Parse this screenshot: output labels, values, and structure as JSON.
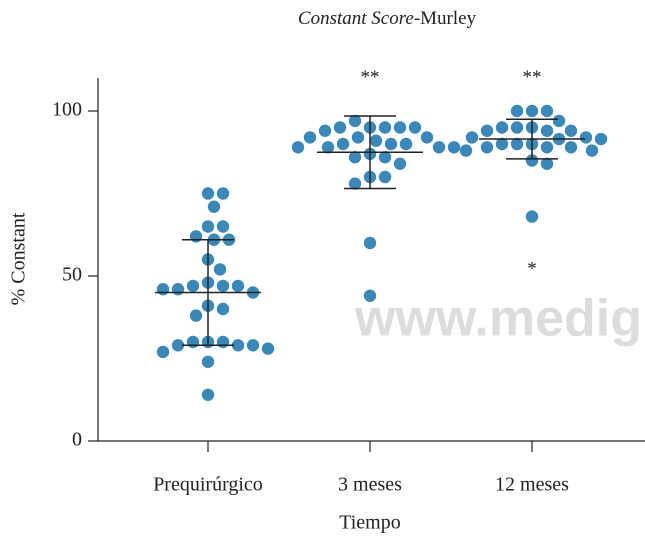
{
  "chart_data": {
    "type": "dotplot",
    "title": {
      "italic": "Constant Score",
      "rest": "-Murley"
    },
    "xlabel": "Tiempo",
    "ylabel": "% Constant",
    "watermark": "www.medigr",
    "color": "#3a87b8",
    "categories": [
      "Prequirúrgico",
      "3 meses",
      "12 meses"
    ],
    "groups": [
      [
        75,
        75,
        71,
        65,
        65,
        62,
        61,
        61,
        55,
        52,
        48,
        47,
        47,
        47,
        46,
        45,
        46,
        41,
        40,
        38,
        30,
        30,
        30,
        29,
        29,
        29,
        27,
        28,
        24,
        14
      ],
      [
        95,
        95,
        97,
        95,
        95,
        95,
        94,
        92,
        92,
        92,
        91,
        90,
        90,
        90,
        89,
        89,
        89,
        89,
        87,
        86,
        86,
        84,
        80,
        80,
        78,
        60,
        44
      ],
      [
        100,
        100,
        100,
        97,
        95,
        95,
        95,
        94,
        94,
        94,
        92,
        92,
        91.5,
        91.5,
        90,
        90,
        90,
        89,
        89,
        89,
        88,
        88,
        85,
        84,
        68
      ]
    ],
    "means": [
      45,
      87.5,
      91.5
    ],
    "sds": [
      16,
      11,
      6
    ],
    "annotations": [
      {
        "text": "**",
        "x": "3 meses",
        "y": 111
      },
      {
        "text": "**",
        "x": "12 meses",
        "y": 111
      },
      {
        "text": "*",
        "x": "12 meses",
        "y": 53
      }
    ],
    "ylim": [
      0,
      110
    ],
    "yticks": [
      0,
      50,
      100
    ]
  }
}
